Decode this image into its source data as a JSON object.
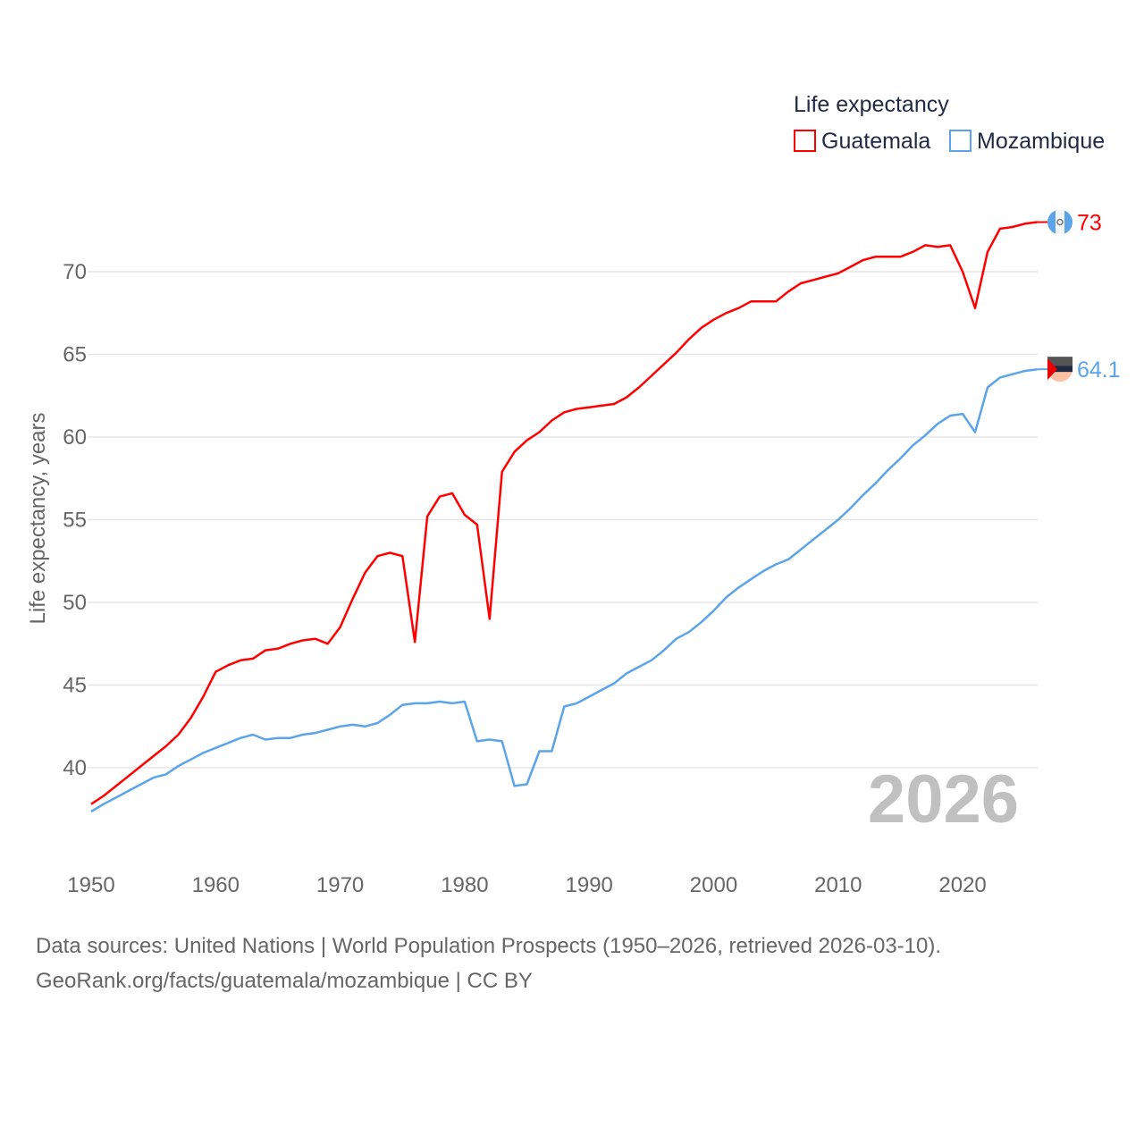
{
  "chart_data": {
    "type": "line",
    "ylabel": "Life expectancy, years",
    "xlabel": "",
    "ylim": [
      35,
      75
    ],
    "xlim": [
      1950,
      2026
    ],
    "yticks": [
      40,
      45,
      50,
      55,
      60,
      65,
      70
    ],
    "xticks": [
      1950,
      1960,
      1970,
      1980,
      1990,
      2000,
      2010,
      2020
    ],
    "grid": true,
    "legend": {
      "title": "Life expectancy",
      "placement": "top-right"
    },
    "current_year_label": "2026",
    "x": [
      1950,
      1951,
      1952,
      1953,
      1954,
      1955,
      1956,
      1957,
      1958,
      1959,
      1960,
      1961,
      1962,
      1963,
      1964,
      1965,
      1966,
      1967,
      1968,
      1969,
      1970,
      1971,
      1972,
      1973,
      1974,
      1975,
      1976,
      1977,
      1978,
      1979,
      1980,
      1981,
      1982,
      1983,
      1984,
      1985,
      1986,
      1987,
      1988,
      1989,
      1990,
      1991,
      1992,
      1993,
      1994,
      1995,
      1996,
      1997,
      1998,
      1999,
      2000,
      2001,
      2002,
      2003,
      2004,
      2005,
      2006,
      2007,
      2008,
      2009,
      2010,
      2011,
      2012,
      2013,
      2014,
      2015,
      2016,
      2017,
      2018,
      2019,
      2020,
      2021,
      2022,
      2023,
      2024,
      2025,
      2026
    ],
    "series": [
      {
        "name": "Guatemala",
        "color": "#ff0000",
        "end_label": "73",
        "values": [
          37.8,
          38.3,
          38.9,
          39.5,
          40.1,
          40.7,
          41.3,
          42.0,
          43.0,
          44.3,
          45.8,
          46.2,
          46.5,
          46.6,
          47.1,
          47.2,
          47.5,
          47.7,
          47.8,
          47.5,
          48.5,
          50.2,
          51.8,
          52.8,
          53.0,
          52.8,
          47.6,
          55.2,
          56.4,
          56.6,
          55.3,
          54.7,
          49.0,
          57.9,
          59.1,
          59.8,
          60.3,
          61.0,
          61.5,
          61.7,
          61.8,
          61.9,
          62.0,
          62.4,
          63.0,
          63.7,
          64.4,
          65.1,
          65.9,
          66.6,
          67.1,
          67.5,
          67.8,
          68.2,
          68.2,
          68.2,
          68.8,
          69.3,
          69.5,
          69.7,
          69.9,
          70.3,
          70.7,
          70.9,
          70.9,
          70.9,
          71.2,
          71.6,
          71.5,
          71.6,
          70.0,
          67.8,
          71.2,
          72.6,
          72.7,
          72.9,
          73.0
        ]
      },
      {
        "name": "Mozambique",
        "color": "#5ca4ea",
        "end_label": "64.1",
        "values": [
          37.35,
          37.8,
          38.2,
          38.6,
          39.0,
          39.4,
          39.6,
          40.1,
          40.5,
          40.9,
          41.2,
          41.5,
          41.8,
          42.0,
          41.7,
          41.8,
          41.8,
          42.0,
          42.1,
          42.3,
          42.5,
          42.6,
          42.5,
          42.7,
          43.2,
          43.8,
          43.9,
          43.9,
          44.0,
          43.9,
          44.0,
          41.6,
          41.7,
          41.6,
          38.9,
          39.0,
          41.0,
          41.0,
          43.7,
          43.9,
          44.3,
          44.7,
          45.1,
          45.7,
          46.1,
          46.5,
          47.1,
          47.8,
          48.2,
          48.8,
          49.5,
          50.3,
          50.9,
          51.4,
          51.9,
          52.3,
          52.6,
          53.2,
          53.8,
          54.4,
          55.0,
          55.7,
          56.5,
          57.2,
          58.0,
          58.7,
          59.5,
          60.1,
          60.8,
          61.3,
          61.4,
          60.3,
          63.0,
          63.6,
          63.8,
          64.0,
          64.1
        ]
      }
    ]
  },
  "footer": {
    "line1": "Data sources: United Nations | World Population Prospects (1950–2026, retrieved 2026-03-10).",
    "line2": "GeoRank.org/facts/guatemala/mozambique | CC BY"
  }
}
